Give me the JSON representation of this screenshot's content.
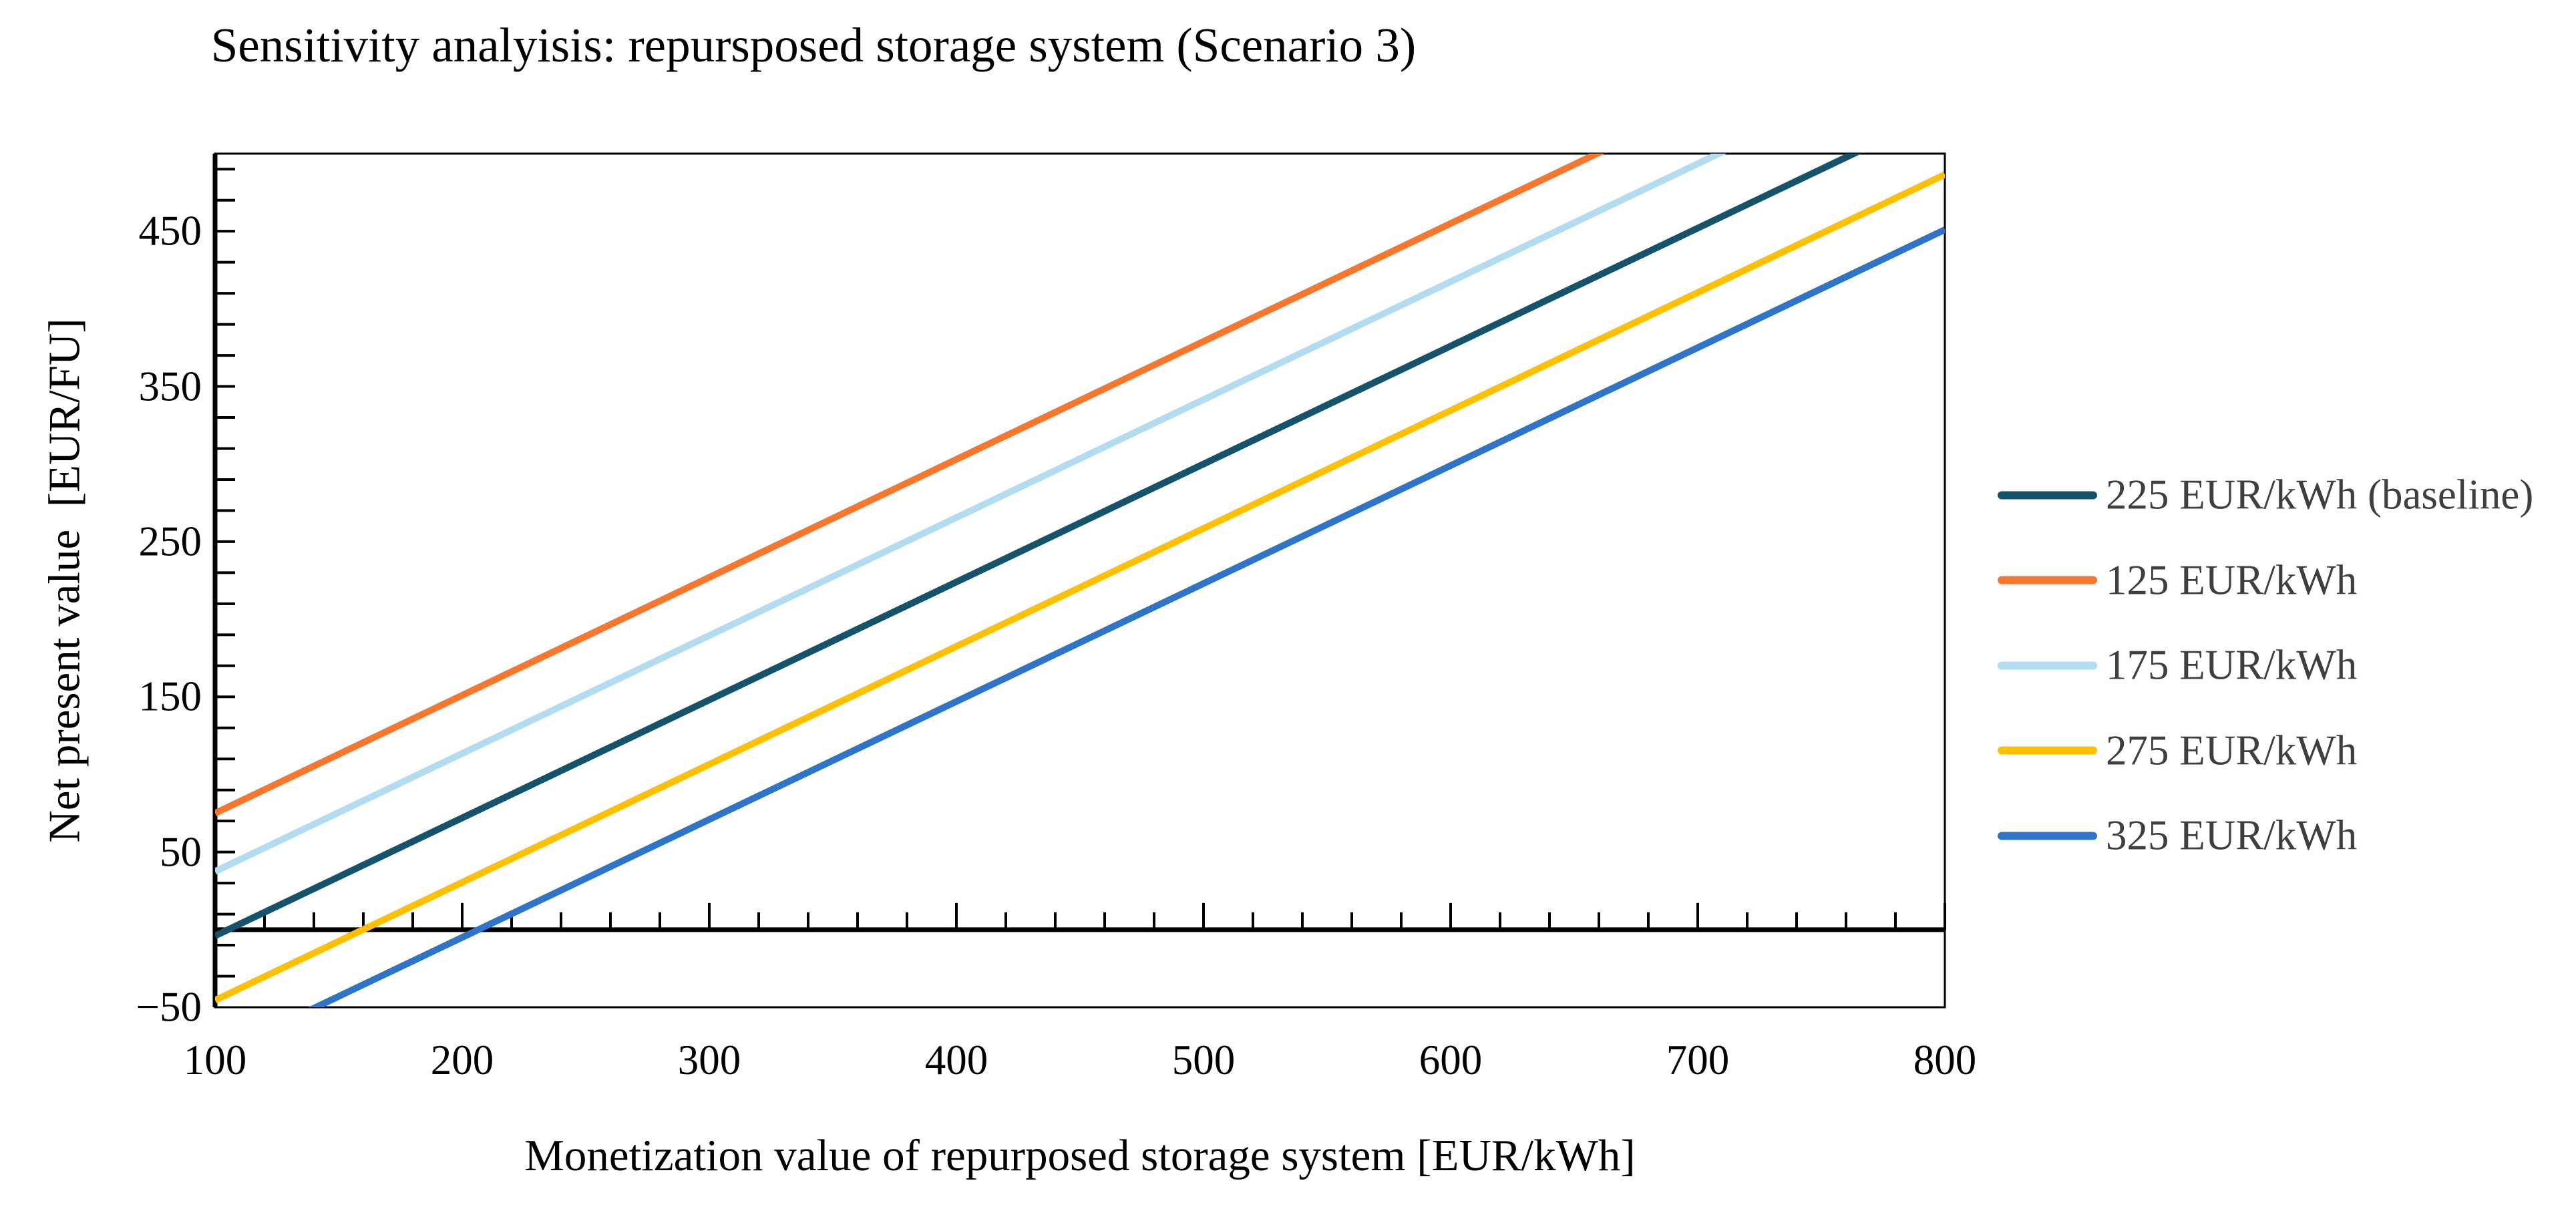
{
  "page": {
    "background": "#FFFFFF"
  },
  "chart_data": {
    "type": "line",
    "title": "Sensitivity analyisis: repursposed storage system (Scenario 3)",
    "xlabel": "Monetization value of repurposed storage system [EUR/kWh]",
    "ylabel": "Net present value  [EUR/FU]",
    "xlim": [
      100,
      800
    ],
    "ylim": [
      -50,
      500
    ],
    "x_tick_labels": [
      "100",
      "200",
      "300",
      "400",
      "500",
      "600",
      "700",
      "800"
    ],
    "x_major_step": 100,
    "x_minor_step": 20,
    "y_tick_labels": [
      "−50",
      "50",
      "150",
      "250",
      "350",
      "450"
    ],
    "y_label_start": -50,
    "y_label_step": 100,
    "y_minor_step": 20,
    "grid": false,
    "zero_axis_line": true,
    "legend_position": "right",
    "axis_text_color": "#000000",
    "legend_text_color": "#3F3F3F",
    "frame_color": "#000000",
    "series": [
      {
        "name": "225 EUR/kWh (baseline)",
        "color": "#14536B",
        "x": [
          100,
          800
        ],
        "y": [
          -4,
          528
        ]
      },
      {
        "name": "125 EUR/kWh",
        "color": "#F8772E",
        "x": [
          100,
          800
        ],
        "y": [
          75,
          607
        ]
      },
      {
        "name": "175 EUR/kWh",
        "color": "#B2DCF0",
        "x": [
          100,
          800
        ],
        "y": [
          37.5,
          569.5
        ]
      },
      {
        "name": "275 EUR/kWh",
        "color": "#FFC001",
        "x": [
          100,
          800
        ],
        "y": [
          -45.5,
          486.5
        ]
      },
      {
        "name": "325 EUR/kWh",
        "color": "#2E74C8",
        "x": [
          100,
          800
        ],
        "y": [
          -81,
          451
        ]
      }
    ]
  }
}
